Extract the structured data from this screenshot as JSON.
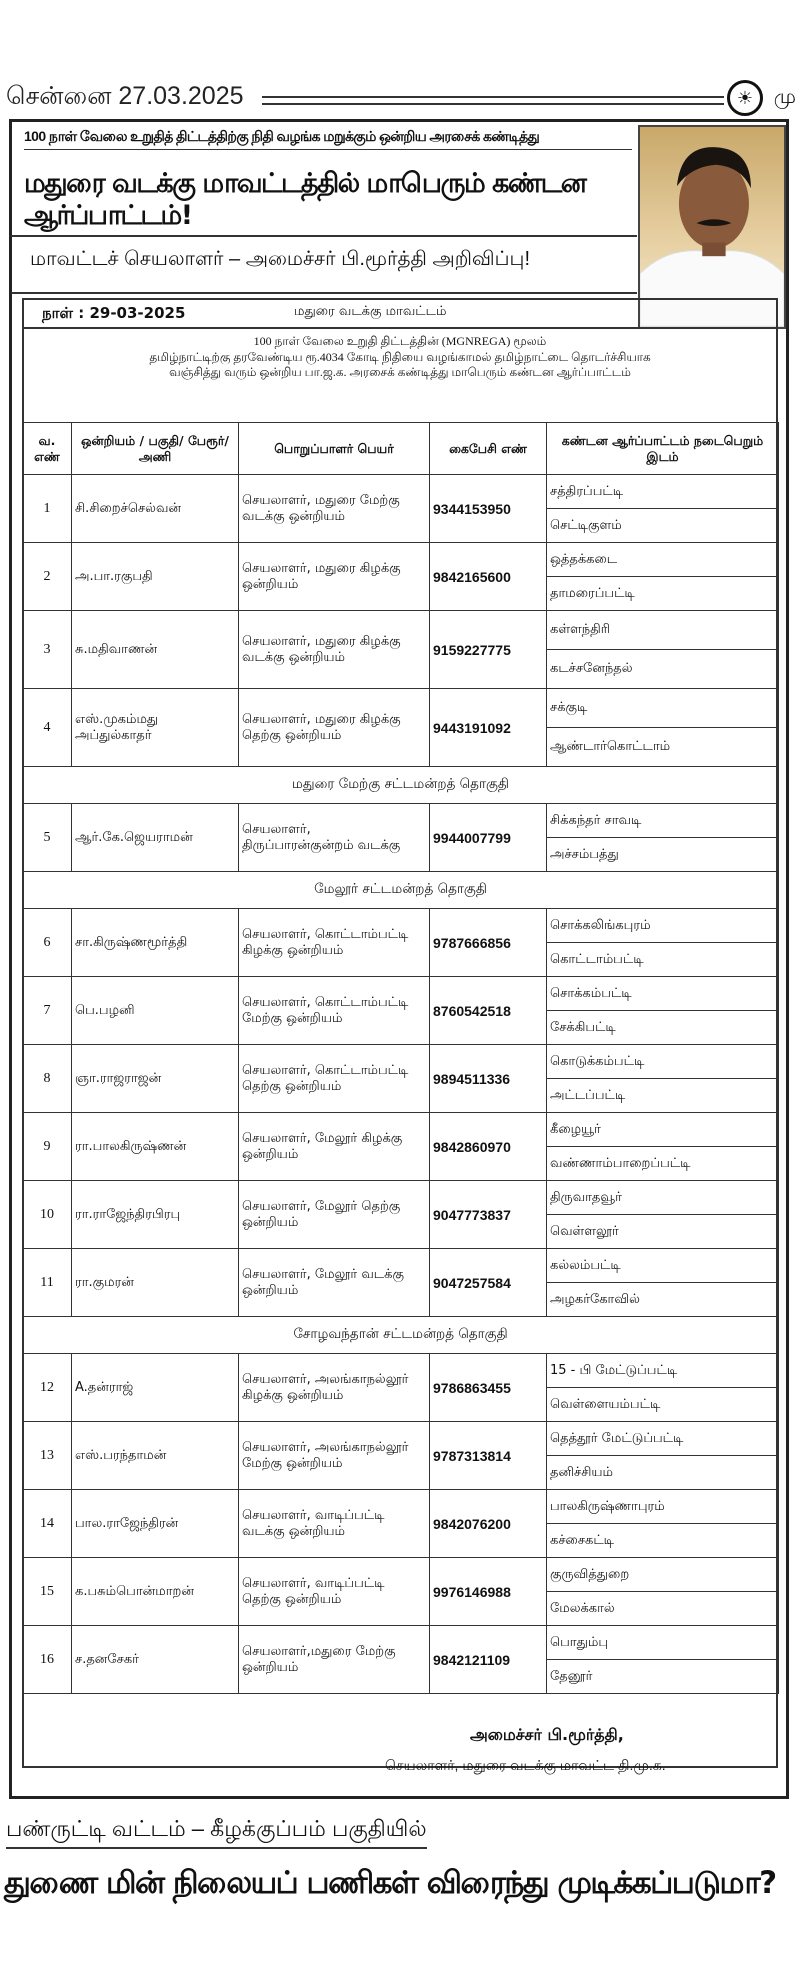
{
  "masthead": {
    "city_date": "சென்னை 27.03.2025",
    "page_head_fragment": "மு",
    "logo_icon": "rising-sun-emblem"
  },
  "ad": {
    "kicker": "100 நாள் வேலை உறுதித் திட்டத்திற்கு நிதி வழங்க மறுக்கும் ஒன்றிய அரசைக் கண்டித்து",
    "headline": "மதுரை வடக்கு மாவட்டத்தில் மாபெரும் கண்டன ஆர்ப்பாட்டம்!",
    "subhead": "மாவட்டச் செயலாளர் – அமைச்சர் பி.மூர்த்தி அறிவிப்பு!",
    "date": "நாள் : 29-03-2025",
    "district": "மதுரை வடக்கு மாவட்டம்",
    "intro": [
      "100 நாள்   வேலை உறுதி திட்டத்தின் (MGNREGA) மூலம்",
      "தமிழ்நாட்டிற்கு தரவேண்டிய ரூ.4034 கோடி நிதியை வழங்காமல் தமிழ்நாட்டை  தொடர்ச்சியாக",
      "வஞ்சித்து வரும் ஒன்றிய பா.ஜ.க. அரசைக் கண்டித்து மாபெரும் கண்டன ஆர்ப்பாட்டம்"
    ],
    "table": {
      "headers": [
        "வ. எண்",
        "ஒன்றியம் / பகுதி/ பேரூர்/அணி",
        "பொறுப்பாளர் பெயர்",
        "கைபேசி எண்",
        "கண்டன ஆர்ப்பாட்டம் நடைபெறும் இடம்"
      ],
      "body": [
        {
          "sn": "1",
          "name": "சி.சிறைச்செல்வன்",
          "role": "செயலாளர், மதுரை மேற்கு வடக்கு ஒன்றியம்",
          "phone": "9344153950",
          "places": [
            "சத்திரப்பட்டி",
            "செட்டிகுளம்"
          ]
        },
        {
          "sn": "2",
          "name": "அ.பா.ரகுபதி",
          "role": "செயலாளர், மதுரை கிழக்கு ஒன்றியம்",
          "phone": "9842165600",
          "places": [
            "ஒத்தக்கடை",
            "தாமரைப்பட்டி"
          ]
        },
        {
          "sn": "3",
          "name": "சு.மதிவாணன்",
          "role": "செயலாளர், மதுரை கிழக்கு வடக்கு ஒன்றியம்",
          "phone": "9159227775",
          "places": [
            "கள்ளந்திரி",
            "கடச்சனேந்தல்"
          ]
        },
        {
          "sn": "4",
          "name": "எஸ்.முகம்மது அப்துல்காதர்",
          "role": "செயலாளர், மதுரை கிழக்கு தெற்கு ஒன்றியம்",
          "phone": "9443191092",
          "places": [
            "சக்குடி",
            "ஆண்டார்கொட்டாம்"
          ]
        },
        {
          "section": "மதுரை மேற்கு சட்டமன்றத் தொகுதி"
        },
        {
          "sn": "5",
          "name": "ஆர்.கே.ஜெயராமன்",
          "role": "செயலாளர், திருப்பாரன்குன்றம் வடக்கு",
          "phone": "9944007799",
          "places": [
            "சிக்கந்தர் சாவடி",
            "அச்சம்பத்து"
          ]
        },
        {
          "section": "மேலூர் சட்டமன்றத் தொகுதி"
        },
        {
          "sn": "6",
          "name": "சா.கிருஷ்ணமூர்த்தி",
          "role": "செயலாளர், கொட்டாம்பட்டி கிழக்கு ஒன்றியம்",
          "phone": "9787666856",
          "places": [
            "சொக்கலிங்கபுரம்",
            "கொட்டாம்பட்டி"
          ]
        },
        {
          "sn": "7",
          "name": "பெ.பழனி",
          "role": "செயலாளர், கொட்டாம்பட்டி மேற்கு ஒன்றியம்",
          "phone": "8760542518",
          "places": [
            "சொக்கம்பட்டி",
            "சேக்கிபட்டி"
          ]
        },
        {
          "sn": "8",
          "name": "ஞா.ராஜராஜன்",
          "role": "செயலாளர், கொட்டாம்பட்டி தெற்கு ஒன்றியம்",
          "phone": "9894511336",
          "places": [
            "கொடுக்கம்பட்டி",
            "அட்டப்பட்டி"
          ]
        },
        {
          "sn": "9",
          "name": "ரா.பாலகிருஷ்ணன்",
          "role": "செயலாளர், மேலூர் கிழக்கு ஒன்றியம்",
          "phone": "9842860970",
          "places": [
            "கீழையூர்",
            "வண்ணாம்பாறைப்பட்டி"
          ]
        },
        {
          "sn": "10",
          "name": "ரா.ராஜேந்திரபிரபு",
          "role": "செயலாளர், மேலூர் தெற்கு ஒன்றியம்",
          "phone": "9047773837",
          "places": [
            "திருவாதவூர்",
            "வெள்ளலூர்"
          ]
        },
        {
          "sn": "11",
          "name": "ரா.குமரன்",
          "role": "செயலாளர், மேலூர் வடக்கு ஒன்றியம்",
          "phone": "9047257584",
          "places": [
            "கல்லம்பட்டி",
            "அழகர்கோவில்"
          ]
        },
        {
          "section": "சோழவந்தான் சட்டமன்றத் தொகுதி"
        },
        {
          "sn": "12",
          "name": "A.தன்ராஜ்",
          "role": "செயலாளர், அலங்காநல்லூர் கிழக்கு ஒன்றியம்",
          "phone": "9786863455",
          "places": [
            "15 - பி மேட்டுப்பட்டி",
            "வெள்ளையம்பட்டி"
          ]
        },
        {
          "sn": "13",
          "name": "எஸ்.பரந்தாமன்",
          "role": "செயலாளர், அலங்காநல்லூர் மேற்கு ஒன்றியம்",
          "phone": "9787313814",
          "places": [
            "தெத்தூர் மேட்டுப்பட்டி",
            "தனிச்சியம்"
          ]
        },
        {
          "sn": "14",
          "name": "பால.ராஜேந்திரன்",
          "role": "செயலாளர், வாடிப்பட்டி வடக்கு ஒன்றியம்",
          "phone": "9842076200",
          "places": [
            "பாலகிருஷ்ணாபுரம்",
            "கச்சைகட்டி"
          ]
        },
        {
          "sn": "15",
          "name": "க.பசும்பொன்மாறன்",
          "role": "செயலாளர், வாடிப்பட்டி தெற்கு ஒன்றியம்",
          "phone": "9976146988",
          "places": [
            "குருவித்துறை",
            "மேலக்கால்"
          ]
        },
        {
          "sn": "16",
          "name": "ச.தனசேகர்",
          "role": "செயலாளர்,மதுரை மேற்கு ஒன்றியம்",
          "phone": "9842121109",
          "places": [
            "பொதும்பு",
            "தேனூர்"
          ]
        }
      ]
    },
    "signature": {
      "name": "அமைச்சர் பி.மூர்த்தி,",
      "title": "செயலாளர்,  மதுரை வடக்கு மாவட்ட தி.மு.க."
    }
  },
  "next_article": {
    "kicker": "பண்ருட்டி வட்டம் – கீழக்குப்பம் பகுதியில்",
    "headline": "துணை மின் நிலையப் பணிகள் விரைந்து முடிக்கப்படுமா?"
  }
}
